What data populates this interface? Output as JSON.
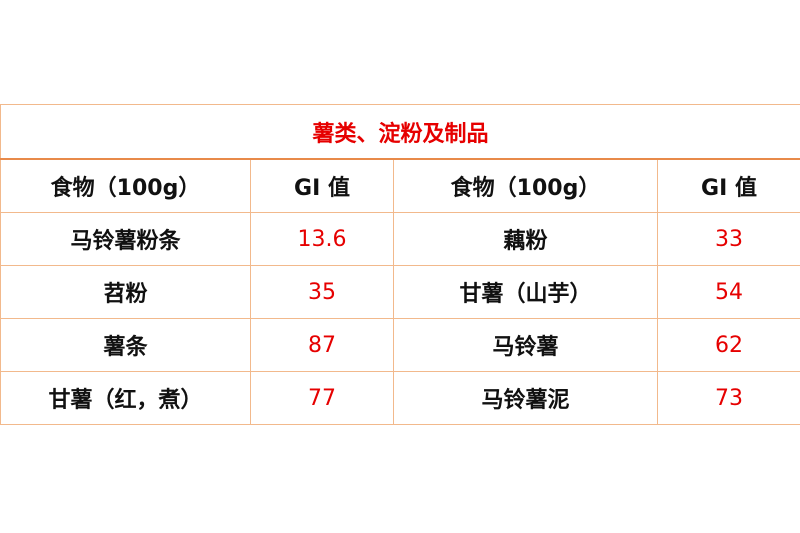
{
  "title": "薯类、淀粉及制品",
  "headers": [
    "食物（100g）",
    "GI 值",
    "食物（100g）",
    "GI 值"
  ],
  "rows": [
    [
      "马铃薯粉条",
      "13.6",
      "藕粉",
      "33"
    ],
    [
      "苕粉",
      "35",
      "甘薯（山芋）",
      "54"
    ],
    [
      "薯条",
      "87",
      "马铃薯",
      "62"
    ],
    [
      "甘薯（红，煮）",
      "77",
      "马铃薯泥",
      "73"
    ]
  ],
  "colors": {
    "accent": "#e60000",
    "border": "#f2b98c"
  }
}
